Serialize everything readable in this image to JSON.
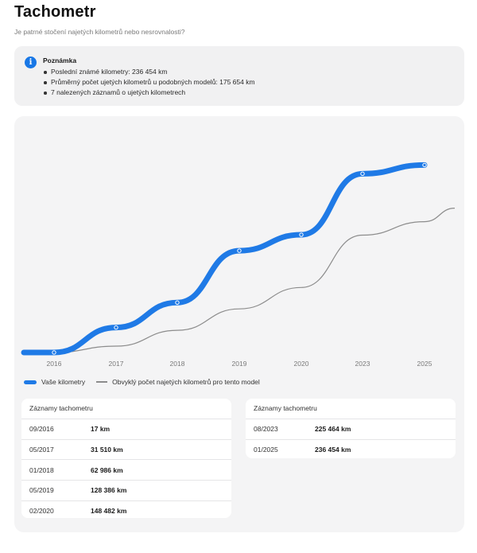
{
  "header": {
    "title": "Tachometr",
    "subtitle": "Je patrné stočení najetých kilometrů nebo nesrovnalosti?"
  },
  "note": {
    "icon": "info-icon",
    "title": "Poznámka",
    "items": [
      "Poslední známé kilometry: 236 454 km",
      "Průměrný počet ujetých kilometrů u podobných modelů: 175 654 km",
      "7 nalezených záznamů o ujetých kilometrech"
    ]
  },
  "colors": {
    "accent": "#1f7ae6",
    "secondary_line": "#8c8c8c",
    "info": "#1877e6"
  },
  "chart_data": {
    "type": "line",
    "title": "",
    "xlabel": "",
    "ylabel": "",
    "x_ticks": [
      "2016",
      "2017",
      "2018",
      "2019",
      "2020",
      "2023",
      "2025"
    ],
    "ylim": [
      0,
      280000
    ],
    "grid": false,
    "legend_position": "bottom-left",
    "series": [
      {
        "name": "Vaše kilometry",
        "style": "thick",
        "points": [
          {
            "x": "2016",
            "y": 17
          },
          {
            "x": "2017",
            "y": 31510
          },
          {
            "x": "2018",
            "y": 62986
          },
          {
            "x": "2019",
            "y": 128386
          },
          {
            "x": "2020",
            "y": 148482
          },
          {
            "x": "2023",
            "y": 225464
          },
          {
            "x": "2025",
            "y": 236454
          }
        ]
      },
      {
        "name": "Obvyklý počet najetých kilometrů pro tento model",
        "style": "thin",
        "points": [
          {
            "x": "2016",
            "y": 0
          },
          {
            "x": "2017",
            "y": 8000
          },
          {
            "x": "2018",
            "y": 28000
          },
          {
            "x": "2019",
            "y": 55000
          },
          {
            "x": "2020",
            "y": 82000
          },
          {
            "x": "2023",
            "y": 148000
          },
          {
            "x": "2025",
            "y": 165000
          },
          {
            "x": "end",
            "y": 182000
          }
        ]
      }
    ]
  },
  "records": {
    "title": "Záznamy tachometru",
    "left": [
      {
        "date": "09/2016",
        "value": "17 km"
      },
      {
        "date": "05/2017",
        "value": "31 510 km"
      },
      {
        "date": "01/2018",
        "value": "62 986 km"
      },
      {
        "date": "05/2019",
        "value": "128 386 km"
      },
      {
        "date": "02/2020",
        "value": "148 482 km"
      }
    ],
    "right": [
      {
        "date": "08/2023",
        "value": "225 464 km"
      },
      {
        "date": "01/2025",
        "value": "236 454 km"
      }
    ]
  }
}
